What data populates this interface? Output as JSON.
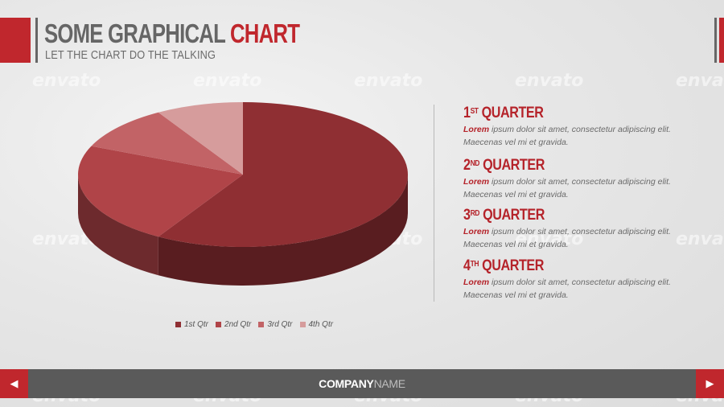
{
  "header": {
    "title_main": "SOME GRAPHICAL ",
    "title_accent": "CHART",
    "subtitle": "LET THE CHART DO THE TALKING"
  },
  "colors": {
    "accent": "#c0272d",
    "footer": "#5a5a5a"
  },
  "watermark_text": "envato",
  "chart_data": {
    "type": "pie",
    "title": "",
    "categories": [
      "1st Qtr",
      "2nd Qtr",
      "3rd Qtr",
      "4th Qtr"
    ],
    "values": [
      8.2,
      3.2,
      1.4,
      1.2
    ],
    "colors": [
      "#8f2f33",
      "#b04448",
      "#c26366",
      "#d69c9c"
    ],
    "legend_position": "bottom"
  },
  "quarters": [
    {
      "num": "1",
      "suffix": "ST",
      "label": " QUARTER",
      "lead": "Lorem",
      "text": " ipsum dolor sit amet, consectetur adipiscing elit. Maecenas vel mi et gravida."
    },
    {
      "num": "2",
      "suffix": "ND",
      "label": " QUARTER",
      "lead": "Lorem",
      "text": " ipsum dolor sit amet, consectetur adipiscing elit. Maecenas vel mi et gravida."
    },
    {
      "num": "3",
      "suffix": "RD",
      "label": " QUARTER",
      "lead": "Lorem",
      "text": " ipsum dolor sit amet, consectetur adipiscing elit. Maecenas vel mi et gravida."
    },
    {
      "num": "4",
      "suffix": "TH",
      "label": " QUARTER",
      "lead": "Lorem",
      "text": " ipsum dolor sit amet, consectetur adipiscing elit. Maecenas vel mi et gravida."
    }
  ],
  "footer": {
    "company_bold": "COMPANY",
    "company_light": "NAME",
    "prev_icon": "◀",
    "next_icon": "▶"
  }
}
